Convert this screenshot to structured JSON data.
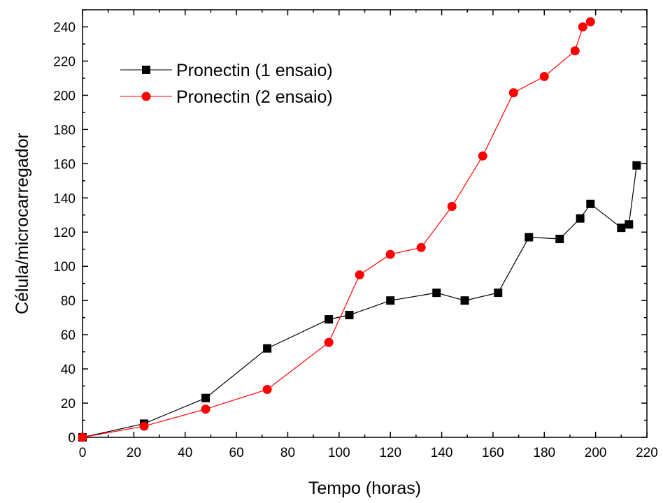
{
  "chart_data": {
    "type": "line",
    "title": "",
    "xlabel": "Tempo (horas)",
    "ylabel": "Célula/microcarregador",
    "xlim": [
      0,
      220
    ],
    "ylim": [
      0,
      250
    ],
    "xticks": [
      0,
      20,
      40,
      60,
      80,
      100,
      120,
      140,
      160,
      180,
      200,
      220
    ],
    "yticks": [
      0,
      20,
      40,
      60,
      80,
      100,
      120,
      140,
      160,
      180,
      200,
      220,
      240
    ],
    "xtick_labels": [
      "0",
      "20",
      "40",
      "60",
      "80",
      "100",
      "120",
      "140",
      "160",
      "180",
      "200",
      "220"
    ],
    "ytick_labels": [
      "0",
      "20",
      "40",
      "60",
      "80",
      "100",
      "120",
      "140",
      "160",
      "180",
      "200",
      "220",
      "240"
    ],
    "grid": false,
    "legend_position": "top-left",
    "series": [
      {
        "name": "Pronectin (1 ensaio)",
        "color": "#000000",
        "marker": "square",
        "x": [
          0,
          24,
          48,
          72,
          96,
          104,
          120,
          138,
          149,
          162,
          174,
          186,
          194,
          198,
          210,
          213,
          216
        ],
        "y": [
          0,
          8,
          23,
          52,
          69,
          71.5,
          80,
          84.5,
          80,
          84.5,
          117,
          116,
          128,
          136.5,
          122.5,
          124.5,
          159
        ]
      },
      {
        "name": "Pronectin (2 ensaio)",
        "color": "#ff0000",
        "marker": "circle",
        "x": [
          0,
          24,
          48,
          72,
          96,
          108,
          120,
          132,
          144,
          156,
          168,
          180,
          192,
          195,
          198
        ],
        "y": [
          0,
          6.5,
          16.5,
          28,
          55.5,
          95,
          107,
          111,
          135,
          164.5,
          201.5,
          211,
          226,
          240,
          243
        ]
      }
    ]
  }
}
